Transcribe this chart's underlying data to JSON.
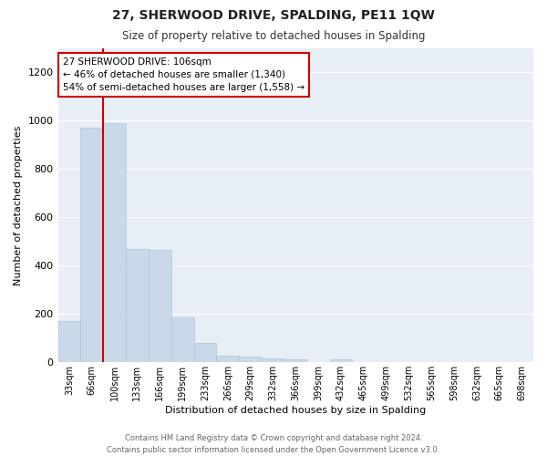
{
  "title": "27, SHERWOOD DRIVE, SPALDING, PE11 1QW",
  "subtitle": "Size of property relative to detached houses in Spalding",
  "xlabel": "Distribution of detached houses by size in Spalding",
  "ylabel": "Number of detached properties",
  "footer_line1": "Contains HM Land Registry data © Crown copyright and database right 2024.",
  "footer_line2": "Contains public sector information licensed under the Open Government Licence v3.0.",
  "annotation_title": "27 SHERWOOD DRIVE: 106sqm",
  "annotation_line2": "← 46% of detached houses are smaller (1,340)",
  "annotation_line3": "54% of semi-detached houses are larger (1,558) →",
  "bar_color": "#c9d9ea",
  "bar_edge_color": "#aec6d8",
  "vline_color": "#cc0000",
  "categories": [
    "33sqm",
    "66sqm",
    "100sqm",
    "133sqm",
    "166sqm",
    "199sqm",
    "233sqm",
    "266sqm",
    "299sqm",
    "332sqm",
    "366sqm",
    "399sqm",
    "432sqm",
    "465sqm",
    "499sqm",
    "532sqm",
    "565sqm",
    "598sqm",
    "632sqm",
    "665sqm",
    "698sqm"
  ],
  "values": [
    170,
    970,
    990,
    470,
    465,
    185,
    80,
    28,
    22,
    18,
    12,
    1,
    12,
    0,
    0,
    0,
    0,
    0,
    0,
    0,
    0
  ],
  "ylim": [
    0,
    1300
  ],
  "yticks": [
    0,
    200,
    400,
    600,
    800,
    1000,
    1200
  ],
  "plot_bg_color": "#e8eef5",
  "fig_bg_color": "#ffffff",
  "grid_color": "#ffffff",
  "vline_xindex": 2
}
